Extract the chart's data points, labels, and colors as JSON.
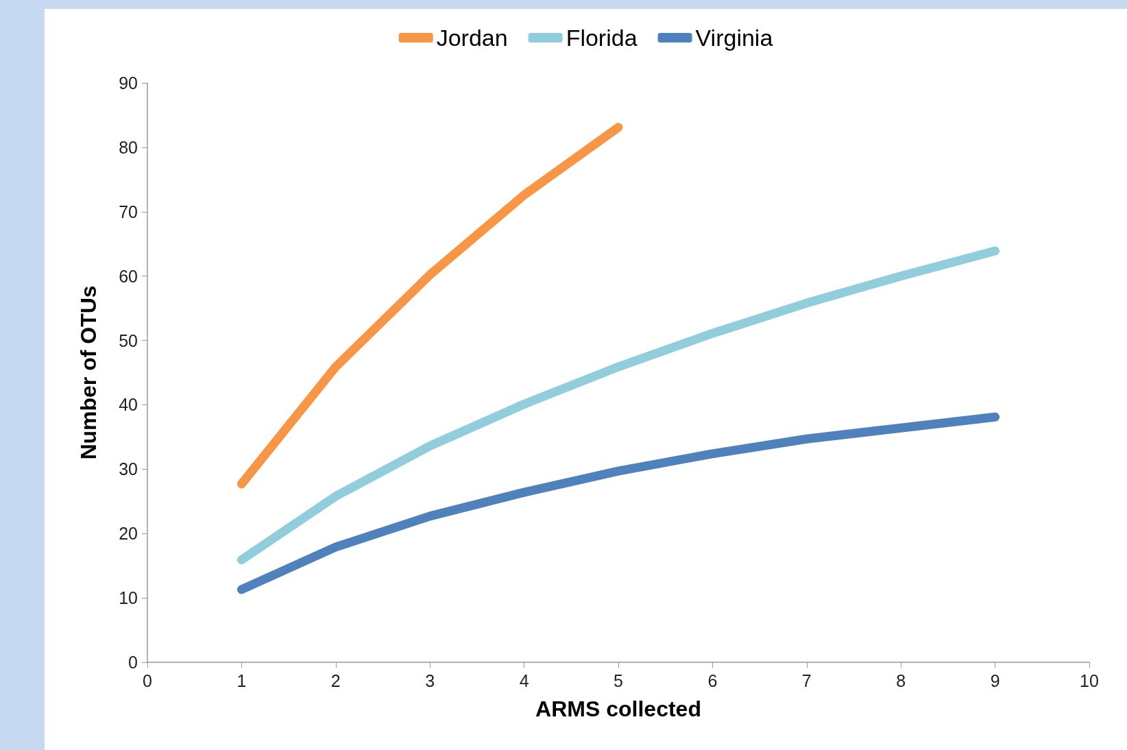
{
  "chart_data": {
    "type": "line",
    "xlabel": "ARMS collected",
    "ylabel": "Number of OTUs",
    "x": [
      1,
      2,
      3,
      4,
      5,
      6,
      7,
      8,
      9
    ],
    "series": [
      {
        "name": "Jordan",
        "color": "#f79646",
        "values": [
          27.7,
          45.9,
          60.2,
          72.6,
          83.1,
          null,
          null,
          null,
          null
        ]
      },
      {
        "name": "Florida",
        "color": "#92cddc",
        "values": [
          15.9,
          25.8,
          33.6,
          40.1,
          45.9,
          51.1,
          55.8,
          60.0,
          63.9
        ]
      },
      {
        "name": "Virginia",
        "color": "#4f81bd",
        "values": [
          11.3,
          17.9,
          22.7,
          26.4,
          29.7,
          32.4,
          34.7,
          36.4,
          38.1
        ]
      }
    ],
    "xlim": [
      0,
      10
    ],
    "xticks": [
      0,
      1,
      2,
      3,
      4,
      5,
      6,
      7,
      8,
      9,
      10
    ],
    "ylim": [
      0,
      90
    ],
    "yticks": [
      0,
      10,
      20,
      30,
      40,
      50,
      60,
      70,
      80,
      90
    ],
    "grid": false,
    "legend": "top",
    "line_style": "solid"
  }
}
